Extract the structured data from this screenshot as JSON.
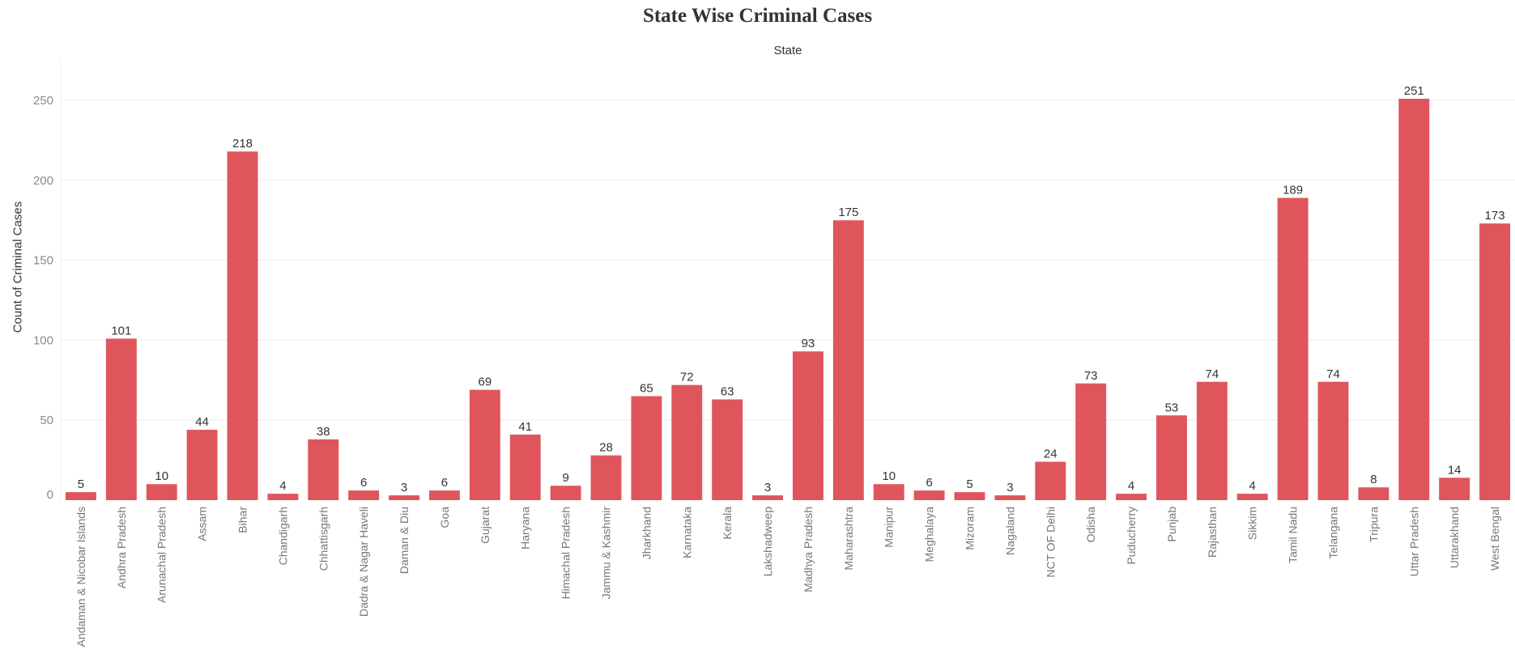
{
  "chart_data": {
    "type": "bar",
    "title": "State Wise Criminal Cases",
    "column_header": "State",
    "ylabel": "Count of Criminal Cases",
    "xlabel": "",
    "ylim": [
      0,
      250
    ],
    "yticks": [
      0,
      50,
      100,
      150,
      200,
      250
    ],
    "grid": true,
    "bar_color": "#e0555b",
    "categories": [
      "Andaman & Nicobar Islands",
      "Andhra Pradesh",
      "Arunachal Pradesh",
      "Assam",
      "Bihar",
      "Chandigarh",
      "Chhattisgarh",
      "Dadra & Nagar Haveli",
      "Daman & Diu",
      "Goa",
      "Gujarat",
      "Haryana",
      "Himachal Pradesh",
      "Jammu & Kashmir",
      "Jharkhand",
      "Karnataka",
      "Kerala",
      "Lakshadweep",
      "Madhya Pradesh",
      "Maharashtra",
      "Manipur",
      "Meghalaya",
      "Mizoram",
      "Nagaland",
      "NCT OF Delhi",
      "Odisha",
      "Puducherry",
      "Punjab",
      "Rajasthan",
      "Sikkim",
      "Tamil Nadu",
      "Telangana",
      "Tripura",
      "Uttar Pradesh",
      "Uttarakhand",
      "West Bengal"
    ],
    "values": [
      5,
      101,
      10,
      44,
      218,
      4,
      38,
      6,
      3,
      6,
      69,
      41,
      9,
      28,
      65,
      72,
      63,
      3,
      93,
      175,
      10,
      6,
      5,
      3,
      24,
      73,
      4,
      53,
      74,
      4,
      189,
      74,
      8,
      251,
      14,
      173
    ]
  }
}
